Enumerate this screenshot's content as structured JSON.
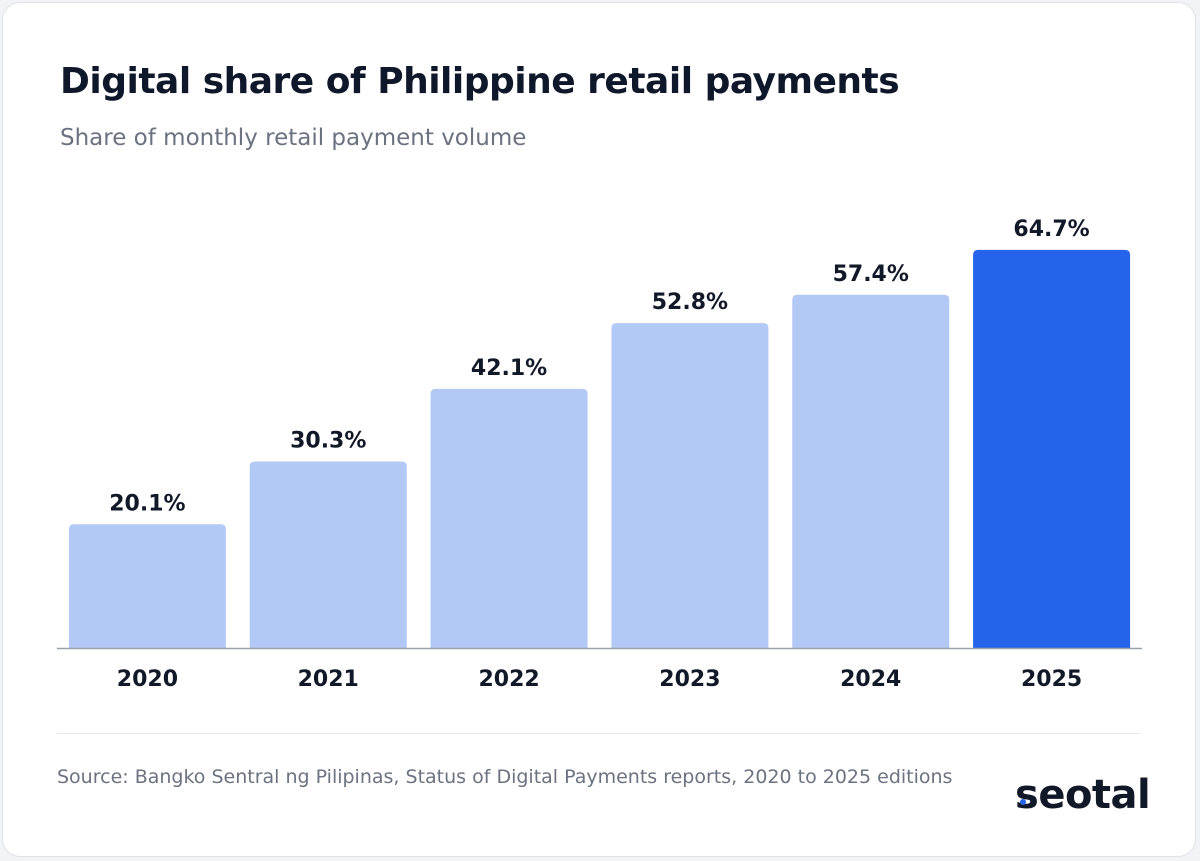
{
  "header": {
    "title": "Digital share of Philippine retail payments",
    "subtitle": "Share of monthly retail payment volume"
  },
  "footer": {
    "source": "Source: Bangko Sentral ng Pilipinas, Status of Digital Payments reports, 2020 to 2025 editions",
    "logo_first": "s",
    "logo_rest": "eotal"
  },
  "colors": {
    "bar": "#b3c9f5",
    "highlight": "#2563eb",
    "text": "#111827"
  },
  "chart_data": {
    "type": "bar",
    "title": "Digital share of Philippine retail payments",
    "subtitle": "Share of monthly retail payment volume",
    "categories": [
      "2020",
      "2021",
      "2022",
      "2023",
      "2024",
      "2025"
    ],
    "values": [
      20.1,
      30.3,
      42.1,
      52.8,
      57.4,
      64.7
    ],
    "value_labels": [
      "20.1%",
      "30.3%",
      "42.1%",
      "52.8%",
      "57.4%",
      "64.7%"
    ],
    "highlight_category": "2025",
    "ylim": [
      0,
      65
    ],
    "grid": false,
    "xlabel": "",
    "ylabel": ""
  }
}
